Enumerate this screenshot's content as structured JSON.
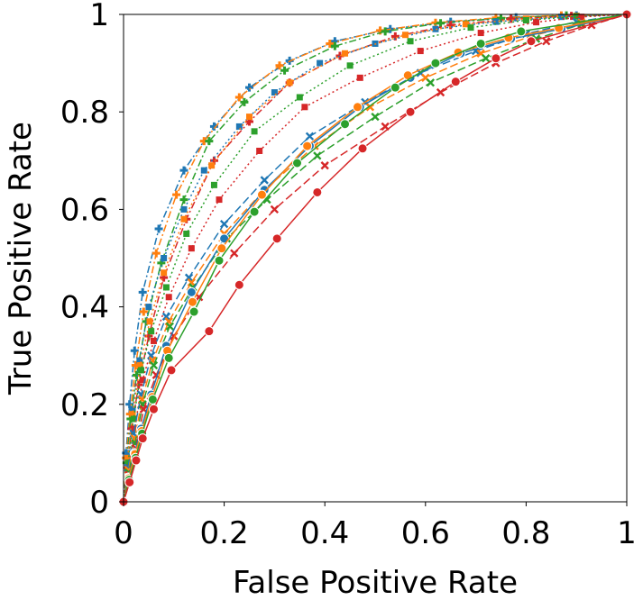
{
  "chart_data": {
    "type": "line",
    "title": "",
    "xlabel": "False Positive Rate",
    "ylabel": "True Positive Rate",
    "xlim": [
      0,
      1
    ],
    "ylim": [
      0,
      1
    ],
    "xticks": [
      0,
      0.2,
      0.4,
      0.6,
      0.8,
      1
    ],
    "xtick_labels": [
      "0",
      "0.2",
      "0.4",
      "0.6",
      "0.8",
      "1"
    ],
    "yticks": [
      0,
      0.2,
      0.4,
      0.6,
      0.8,
      1
    ],
    "ytick_labels": [
      "0",
      "0.2",
      "0.4",
      "0.6",
      "0.8",
      "1"
    ],
    "grid": false,
    "legend": "none",
    "series": [
      {
        "color": "#1f77b4",
        "marker": "plus",
        "line": "dashdot",
        "x": [
          0,
          0.005,
          0.012,
          0.022,
          0.038,
          0.07,
          0.12,
          0.18,
          0.25,
          0.33,
          0.42,
          0.53,
          0.65,
          0.78,
          0.9,
          1
        ],
        "y": [
          0,
          0.1,
          0.2,
          0.31,
          0.43,
          0.56,
          0.68,
          0.77,
          0.85,
          0.905,
          0.945,
          0.97,
          0.985,
          0.994,
          0.998,
          1
        ]
      },
      {
        "color": "#ff7f0e",
        "marker": "plus",
        "line": "dashdot",
        "x": [
          0,
          0.005,
          0.013,
          0.024,
          0.04,
          0.065,
          0.105,
          0.16,
          0.23,
          0.31,
          0.41,
          0.51,
          0.62,
          0.74,
          0.87,
          1
        ],
        "y": [
          0,
          0.09,
          0.18,
          0.28,
          0.39,
          0.51,
          0.63,
          0.74,
          0.83,
          0.895,
          0.94,
          0.967,
          0.983,
          0.993,
          0.998,
          1
        ]
      },
      {
        "color": "#2ca02c",
        "marker": "plus",
        "line": "dashdot",
        "x": [
          0,
          0.006,
          0.014,
          0.026,
          0.045,
          0.075,
          0.12,
          0.17,
          0.24,
          0.32,
          0.42,
          0.52,
          0.63,
          0.75,
          0.88,
          1
        ],
        "y": [
          0,
          0.08,
          0.17,
          0.26,
          0.37,
          0.49,
          0.62,
          0.74,
          0.82,
          0.885,
          0.935,
          0.965,
          0.982,
          0.992,
          0.998,
          1
        ]
      },
      {
        "color": "#d62728",
        "marker": "plus",
        "line": "dashdot",
        "x": [
          0,
          0.007,
          0.016,
          0.03,
          0.05,
          0.08,
          0.125,
          0.18,
          0.25,
          0.33,
          0.43,
          0.54,
          0.65,
          0.77,
          0.89,
          1
        ],
        "y": [
          0,
          0.07,
          0.15,
          0.24,
          0.34,
          0.46,
          0.58,
          0.7,
          0.78,
          0.86,
          0.915,
          0.955,
          0.978,
          0.991,
          0.997,
          1
        ]
      },
      {
        "color": "#1f77b4",
        "marker": "square",
        "line": "dotted",
        "x": [
          0,
          0.008,
          0.018,
          0.032,
          0.05,
          0.08,
          0.12,
          0.16,
          0.23,
          0.3,
          0.39,
          0.5,
          0.62,
          0.74,
          0.87,
          1
        ],
        "y": [
          0,
          0.1,
          0.19,
          0.29,
          0.4,
          0.5,
          0.6,
          0.68,
          0.77,
          0.84,
          0.9,
          0.94,
          0.97,
          0.985,
          0.995,
          1
        ]
      },
      {
        "color": "#ff7f0e",
        "marker": "square",
        "line": "dotted",
        "x": [
          0,
          0.008,
          0.018,
          0.033,
          0.052,
          0.08,
          0.12,
          0.175,
          0.25,
          0.33,
          0.44,
          0.56,
          0.68,
          0.8,
          0.9,
          1
        ],
        "y": [
          0,
          0.09,
          0.18,
          0.28,
          0.37,
          0.47,
          0.58,
          0.69,
          0.79,
          0.86,
          0.92,
          0.958,
          0.98,
          0.991,
          0.997,
          1
        ]
      },
      {
        "color": "#2ca02c",
        "marker": "square",
        "line": "dotted",
        "x": [
          0,
          0.009,
          0.02,
          0.035,
          0.055,
          0.085,
          0.125,
          0.18,
          0.26,
          0.35,
          0.45,
          0.57,
          0.69,
          0.8,
          0.9,
          1
        ],
        "y": [
          0,
          0.08,
          0.17,
          0.27,
          0.35,
          0.44,
          0.55,
          0.65,
          0.76,
          0.83,
          0.895,
          0.945,
          0.973,
          0.988,
          0.996,
          1
        ]
      },
      {
        "color": "#d62728",
        "marker": "square",
        "line": "dotted",
        "x": [
          0,
          0.01,
          0.022,
          0.038,
          0.06,
          0.09,
          0.135,
          0.19,
          0.27,
          0.36,
          0.47,
          0.59,
          0.71,
          0.82,
          0.91,
          1
        ],
        "y": [
          0,
          0.07,
          0.15,
          0.25,
          0.33,
          0.42,
          0.52,
          0.62,
          0.72,
          0.81,
          0.87,
          0.925,
          0.962,
          0.984,
          0.995,
          1
        ]
      },
      {
        "color": "#1f77b4",
        "marker": "x",
        "line": "dashed",
        "x": [
          0,
          0.009,
          0.02,
          0.035,
          0.055,
          0.085,
          0.13,
          0.2,
          0.28,
          0.37,
          0.48,
          0.59,
          0.7,
          0.8,
          0.9,
          1
        ],
        "y": [
          0,
          0.07,
          0.14,
          0.22,
          0.3,
          0.38,
          0.46,
          0.57,
          0.66,
          0.75,
          0.82,
          0.88,
          0.925,
          0.96,
          0.985,
          1
        ]
      },
      {
        "color": "#ff7f0e",
        "marker": "x",
        "line": "dashed",
        "x": [
          0,
          0.01,
          0.022,
          0.037,
          0.058,
          0.09,
          0.135,
          0.2,
          0.28,
          0.38,
          0.49,
          0.6,
          0.71,
          0.81,
          0.91,
          1
        ],
        "y": [
          0,
          0.065,
          0.13,
          0.21,
          0.29,
          0.37,
          0.45,
          0.55,
          0.64,
          0.73,
          0.81,
          0.87,
          0.92,
          0.955,
          0.983,
          1
        ]
      },
      {
        "color": "#2ca02c",
        "marker": "x",
        "line": "dashed",
        "x": [
          0,
          0.01,
          0.023,
          0.038,
          0.06,
          0.092,
          0.138,
          0.205,
          0.285,
          0.385,
          0.5,
          0.61,
          0.72,
          0.82,
          0.91,
          1
        ],
        "y": [
          0,
          0.06,
          0.12,
          0.2,
          0.28,
          0.36,
          0.44,
          0.54,
          0.62,
          0.71,
          0.79,
          0.86,
          0.91,
          0.95,
          0.98,
          1
        ]
      },
      {
        "color": "#d62728",
        "marker": "x",
        "line": "dashed",
        "x": [
          0,
          0.011,
          0.024,
          0.04,
          0.065,
          0.1,
          0.15,
          0.22,
          0.3,
          0.4,
          0.52,
          0.63,
          0.74,
          0.84,
          0.93,
          1
        ],
        "y": [
          0,
          0.055,
          0.11,
          0.19,
          0.26,
          0.34,
          0.42,
          0.51,
          0.6,
          0.69,
          0.77,
          0.84,
          0.9,
          0.945,
          0.978,
          1
        ]
      },
      {
        "color": "#1f77b4",
        "marker": "circle",
        "line": "solid",
        "x": [
          0,
          0.01,
          0.022,
          0.035,
          0.055,
          0.085,
          0.135,
          0.2,
          0.28,
          0.37,
          0.47,
          0.57,
          0.67,
          0.77,
          0.87,
          1
        ],
        "y": [
          0,
          0.05,
          0.1,
          0.15,
          0.22,
          0.32,
          0.43,
          0.54,
          0.64,
          0.73,
          0.81,
          0.87,
          0.92,
          0.95,
          0.97,
          1
        ]
      },
      {
        "color": "#ff7f0e",
        "marker": "circle",
        "line": "solid",
        "x": [
          0,
          0.01,
          0.023,
          0.036,
          0.057,
          0.087,
          0.137,
          0.195,
          0.275,
          0.365,
          0.465,
          0.565,
          0.665,
          0.765,
          0.865,
          1
        ],
        "y": [
          0,
          0.048,
          0.098,
          0.145,
          0.215,
          0.31,
          0.41,
          0.52,
          0.63,
          0.73,
          0.81,
          0.875,
          0.922,
          0.952,
          0.972,
          1
        ]
      },
      {
        "color": "#2ca02c",
        "marker": "circle",
        "line": "solid",
        "x": [
          0,
          0.011,
          0.024,
          0.037,
          0.058,
          0.09,
          0.14,
          0.19,
          0.26,
          0.345,
          0.44,
          0.54,
          0.62,
          0.71,
          0.79,
          1
        ],
        "y": [
          0,
          0.045,
          0.09,
          0.14,
          0.21,
          0.295,
          0.39,
          0.495,
          0.595,
          0.695,
          0.775,
          0.85,
          0.9,
          0.94,
          0.965,
          1
        ]
      },
      {
        "color": "#d62728",
        "marker": "circle",
        "line": "solid",
        "x": [
          0,
          0.012,
          0.025,
          0.038,
          0.06,
          0.095,
          0.17,
          0.23,
          0.305,
          0.385,
          0.475,
          0.57,
          0.66,
          0.74,
          0.81,
          1
        ],
        "y": [
          0,
          0.04,
          0.085,
          0.13,
          0.19,
          0.27,
          0.35,
          0.445,
          0.54,
          0.635,
          0.725,
          0.8,
          0.862,
          0.91,
          0.945,
          1
        ]
      }
    ]
  }
}
